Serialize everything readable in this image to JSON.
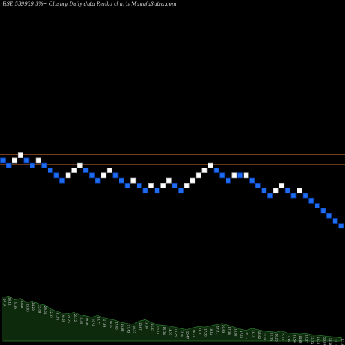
{
  "title": "BSE 539939 3%~  Closing Daily data  Renko  charts MunafaSutra.com",
  "colors": {
    "background": "#000000",
    "up_brick": "#ffffff",
    "down_brick": "#1e6cf0",
    "down_brick_border": "#0a3fb0",
    "ref_line": "#8a4a22",
    "volume_fill": "#0d2a0d",
    "volume_stroke": "#2e7d2e",
    "volume_label": "#cccccc"
  },
  "chart_data": {
    "type": "renko",
    "brick_size": "3%",
    "y_unit": "brick levels (relative)",
    "reference_levels": [
      3.2,
      1.2
    ],
    "bricks": [
      {
        "dir": "down",
        "level": 2
      },
      {
        "dir": "down",
        "level": 1
      },
      {
        "dir": "up",
        "level": 2
      },
      {
        "dir": "up",
        "level": 3
      },
      {
        "dir": "down",
        "level": 2
      },
      {
        "dir": "down",
        "level": 1
      },
      {
        "dir": "up",
        "level": 2
      },
      {
        "dir": "down",
        "level": 1
      },
      {
        "dir": "down",
        "level": 0
      },
      {
        "dir": "down",
        "level": -1
      },
      {
        "dir": "down",
        "level": -2
      },
      {
        "dir": "up",
        "level": -1
      },
      {
        "dir": "up",
        "level": 0
      },
      {
        "dir": "up",
        "level": 1
      },
      {
        "dir": "down",
        "level": 0
      },
      {
        "dir": "down",
        "level": -1
      },
      {
        "dir": "down",
        "level": -2
      },
      {
        "dir": "up",
        "level": -1
      },
      {
        "dir": "up",
        "level": 0
      },
      {
        "dir": "down",
        "level": -1
      },
      {
        "dir": "down",
        "level": -2
      },
      {
        "dir": "down",
        "level": -3
      },
      {
        "dir": "up",
        "level": -2
      },
      {
        "dir": "down",
        "level": -3
      },
      {
        "dir": "down",
        "level": -4
      },
      {
        "dir": "up",
        "level": -3
      },
      {
        "dir": "down",
        "level": -4
      },
      {
        "dir": "up",
        "level": -3
      },
      {
        "dir": "up",
        "level": -2
      },
      {
        "dir": "down",
        "level": -3
      },
      {
        "dir": "down",
        "level": -4
      },
      {
        "dir": "up",
        "level": -3
      },
      {
        "dir": "up",
        "level": -2
      },
      {
        "dir": "up",
        "level": -1
      },
      {
        "dir": "up",
        "level": 0
      },
      {
        "dir": "up",
        "level": 1
      },
      {
        "dir": "down",
        "level": 0
      },
      {
        "dir": "down",
        "level": -1
      },
      {
        "dir": "down",
        "level": -2
      },
      {
        "dir": "up",
        "level": -1
      },
      {
        "dir": "down",
        "level": -1
      },
      {
        "dir": "up",
        "level": -1
      },
      {
        "dir": "down",
        "level": -2
      },
      {
        "dir": "down",
        "level": -3
      },
      {
        "dir": "down",
        "level": -4
      },
      {
        "dir": "down",
        "level": -5
      },
      {
        "dir": "up",
        "level": -4
      },
      {
        "dir": "up",
        "level": -3
      },
      {
        "dir": "down",
        "level": -4
      },
      {
        "dir": "down",
        "level": -5
      },
      {
        "dir": "up",
        "level": -4
      },
      {
        "dir": "down",
        "level": -5
      },
      {
        "dir": "down",
        "level": -6
      },
      {
        "dir": "down",
        "level": -7
      },
      {
        "dir": "down",
        "level": -8
      },
      {
        "dir": "down",
        "level": -9
      },
      {
        "dir": "down",
        "level": -10
      },
      {
        "dir": "down",
        "level": -11
      }
    ],
    "volume": {
      "values": [
        70,
        72,
        66,
        68,
        62,
        64,
        60,
        58,
        52,
        48,
        45,
        44,
        46,
        42,
        40,
        38,
        41,
        37,
        35,
        33,
        30,
        28,
        27,
        32,
        34,
        30,
        26,
        25,
        24,
        22,
        20,
        18,
        21,
        23,
        22,
        24,
        26,
        28,
        25,
        22,
        19,
        17,
        20,
        18,
        16,
        15,
        14,
        16,
        13,
        12,
        11,
        12,
        10,
        9,
        8,
        7,
        6,
        5
      ],
      "labels": [
        "25.45",
        "26.11",
        "24.95",
        "23.88",
        "25.03",
        "24.20",
        "22.98",
        "23.64",
        "22.35",
        "21.76",
        "20.65",
        "21.25",
        "20.12",
        "19.45",
        "18.96",
        "19.58",
        "18.77",
        "17.93",
        "18.49",
        "17.66",
        "16.88",
        "17.42",
        "16.55",
        "15.87",
        "16.39",
        "15.61",
        "16.13",
        "15.34",
        "14.79",
        "15.28",
        "16.04",
        "15.47",
        "16.22",
        "16.81",
        "17.36",
        "18.02",
        "17.41",
        "16.93",
        "17.58",
        "16.95",
        "17.50",
        "16.77",
        "16.19",
        "15.62",
        "15.05",
        "15.70",
        "16.25",
        "15.52",
        "14.98",
        "15.56",
        "14.82",
        "14.27",
        "13.71",
        "13.20",
        "12.69",
        "12.18",
        "11.70",
        "11.22"
      ]
    }
  }
}
